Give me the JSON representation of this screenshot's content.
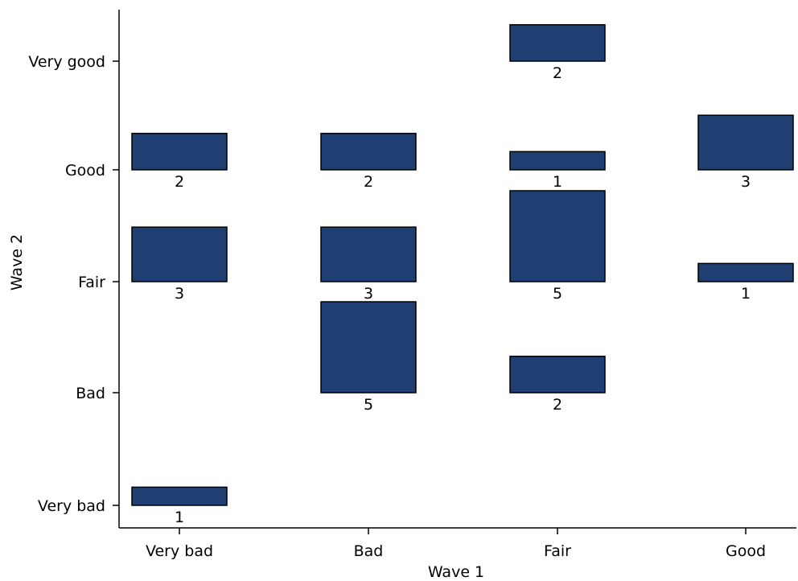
{
  "chart_data": {
    "type": "bar",
    "xlabel": "Wave 1",
    "ylabel": "Wave 2",
    "x_categories": [
      "Very bad",
      "Bad",
      "Fair",
      "Good"
    ],
    "y_categories": [
      "Very bad",
      "Bad",
      "Fair",
      "Good",
      "Very good"
    ],
    "cells": [
      {
        "x": "Very bad",
        "y": "Very bad",
        "count": 1
      },
      {
        "x": "Very bad",
        "y": "Fair",
        "count": 3
      },
      {
        "x": "Very bad",
        "y": "Good",
        "count": 2
      },
      {
        "x": "Bad",
        "y": "Bad",
        "count": 5
      },
      {
        "x": "Bad",
        "y": "Fair",
        "count": 3
      },
      {
        "x": "Bad",
        "y": "Good",
        "count": 2
      },
      {
        "x": "Fair",
        "y": "Bad",
        "count": 2
      },
      {
        "x": "Fair",
        "y": "Fair",
        "count": 5
      },
      {
        "x": "Fair",
        "y": "Good",
        "count": 1
      },
      {
        "x": "Fair",
        "y": "Very good",
        "count": 2
      },
      {
        "x": "Good",
        "y": "Fair",
        "count": 1
      },
      {
        "x": "Good",
        "y": "Good",
        "count": 3
      }
    ],
    "bar_color": "#1f3f73",
    "grid": false
  }
}
